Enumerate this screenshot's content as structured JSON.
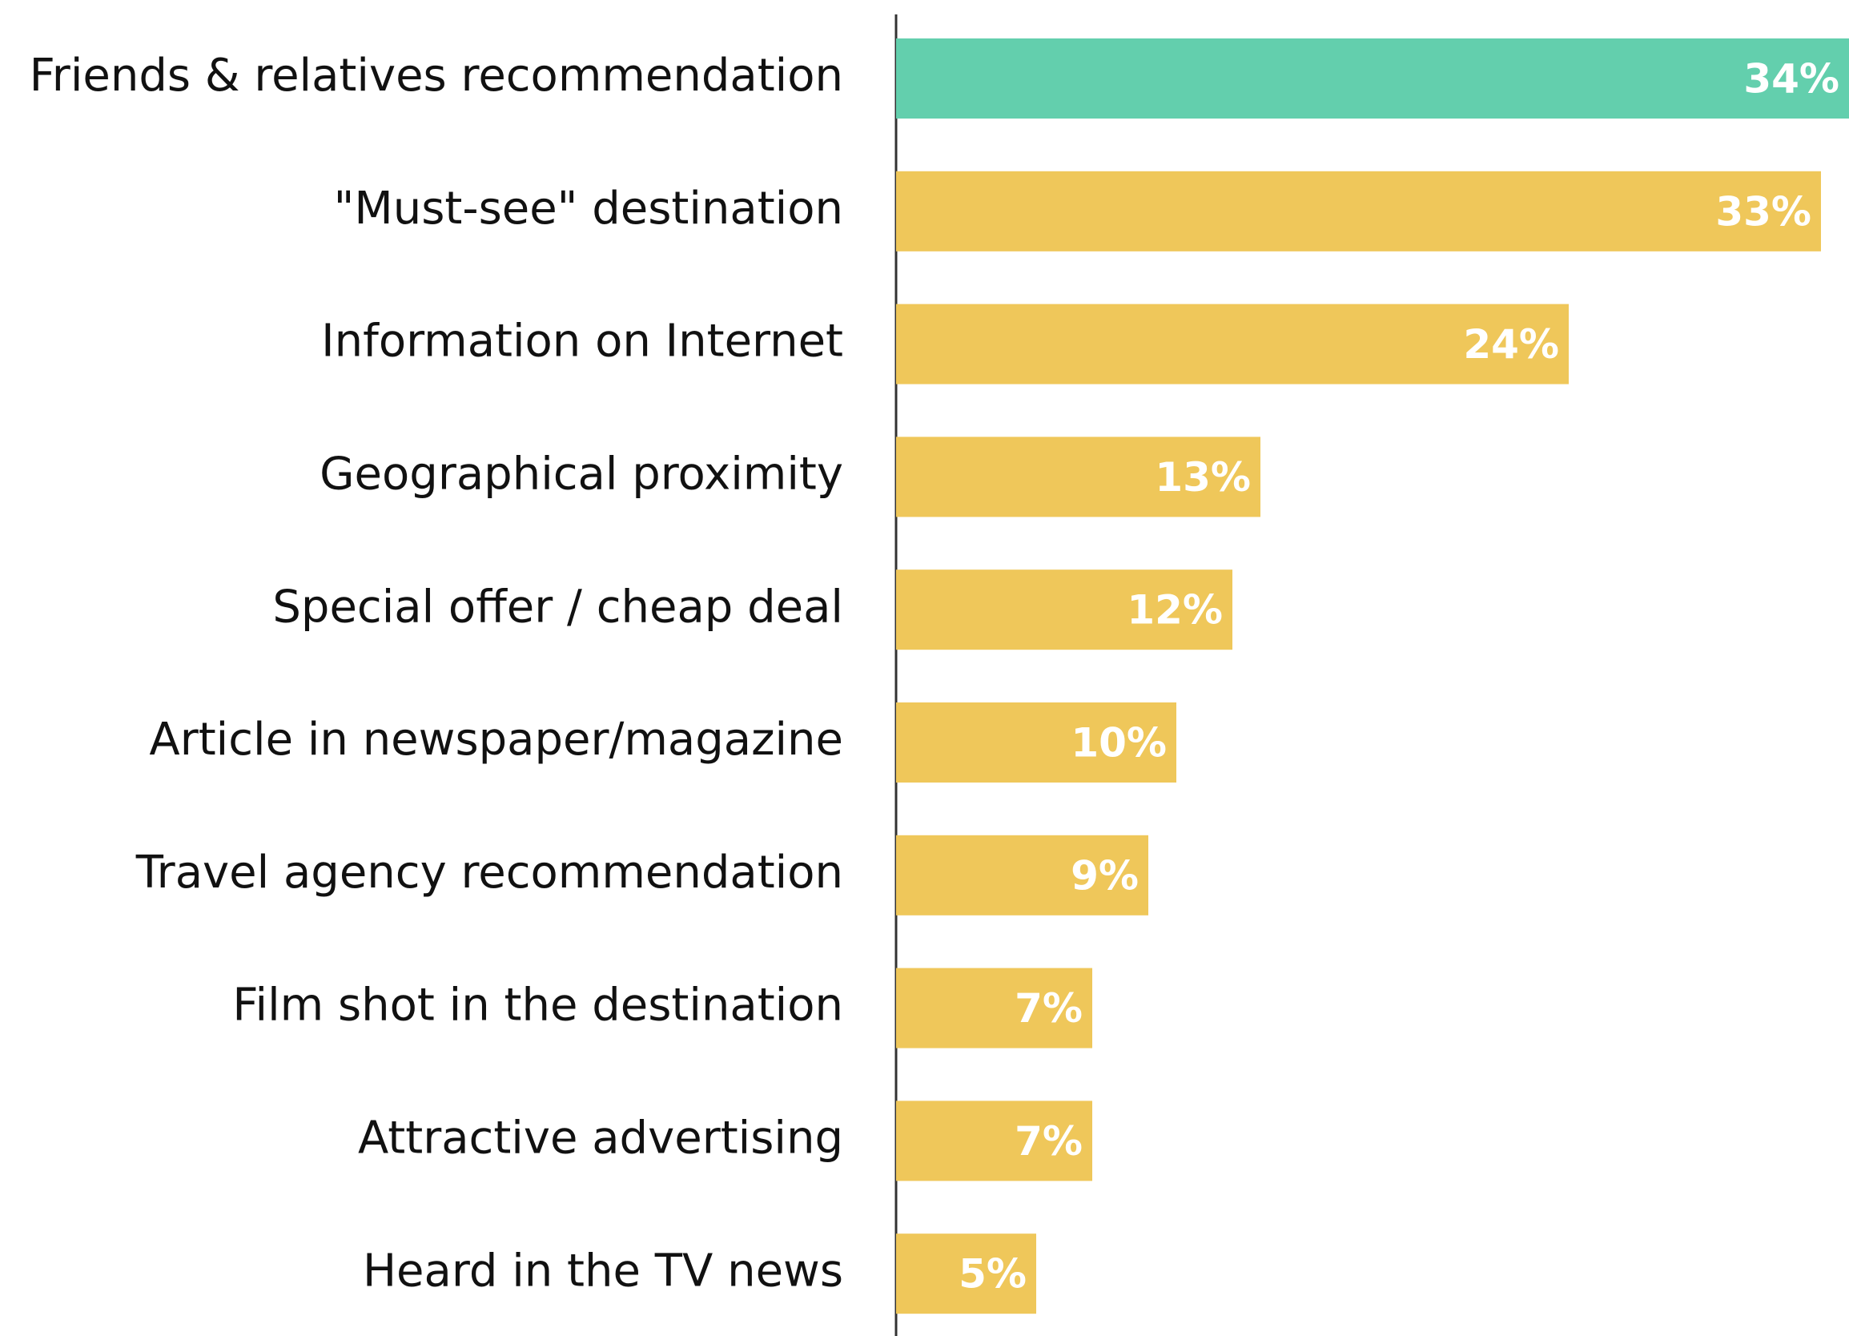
{
  "chart_data": {
    "type": "barh",
    "categories": [
      "Friends & relatives recommendation",
      "\"Must-see\" destination",
      "Information on Internet",
      "Geographical proximity",
      "Special offer / cheap deal",
      "Article in newspaper/magazine",
      "Travel agency recommendation",
      "Film shot in the destination",
      "Attractive advertising",
      "Heard in the TV news"
    ],
    "values": [
      34,
      33,
      24,
      13,
      12,
      10,
      9,
      7,
      7,
      5
    ],
    "value_labels": [
      "34%",
      "33%",
      "24%",
      "13%",
      "12%",
      "10%",
      "9%",
      "7%",
      "7%",
      "5%"
    ],
    "colors": [
      "#63cfad",
      "#efc75a",
      "#efc75a",
      "#efc75a",
      "#efc75a",
      "#efc75a",
      "#efc75a",
      "#efc75a",
      "#efc75a",
      "#efc75a"
    ],
    "xlim": [
      0,
      34
    ]
  }
}
